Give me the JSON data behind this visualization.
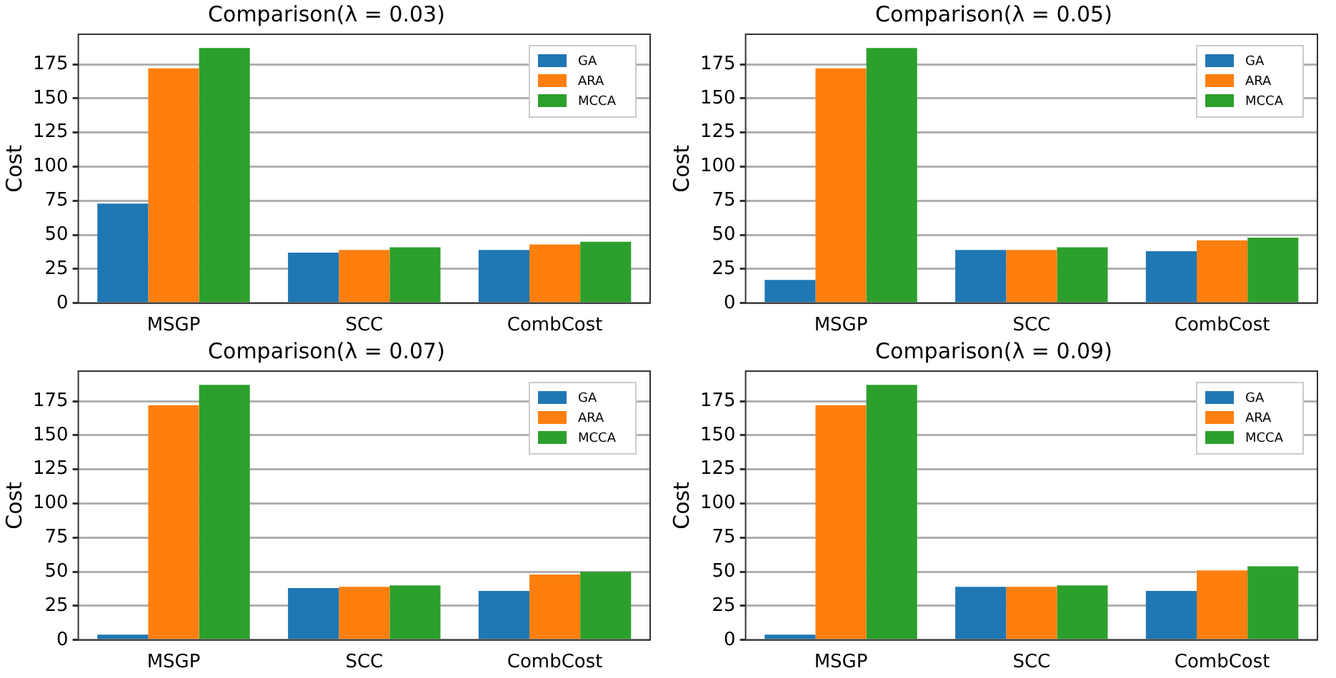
{
  "chart_data": [
    {
      "type": "bar",
      "title": "Comparison(λ = 0.03)",
      "ylabel": "Cost",
      "categories": [
        "MSGP",
        "SCC",
        "CombCost"
      ],
      "series": [
        {
          "name": "GA",
          "color": "#1f77b4",
          "values": [
            73,
            37,
            39
          ]
        },
        {
          "name": "ARA",
          "color": "#ff7f0e",
          "values": [
            172,
            39,
            43
          ]
        },
        {
          "name": "MCCA",
          "color": "#2ca02c",
          "values": [
            187,
            41,
            45
          ]
        }
      ],
      "ylim": [
        0,
        197
      ],
      "yticks": [
        0,
        25,
        50,
        75,
        100,
        125,
        150,
        175
      ],
      "grid": "y",
      "legend": "top right"
    },
    {
      "type": "bar",
      "title": "Comparison(λ = 0.05)",
      "ylabel": "Cost",
      "categories": [
        "MSGP",
        "SCC",
        "CombCost"
      ],
      "series": [
        {
          "name": "GA",
          "color": "#1f77b4",
          "values": [
            17,
            39,
            38
          ]
        },
        {
          "name": "ARA",
          "color": "#ff7f0e",
          "values": [
            172,
            39,
            46
          ]
        },
        {
          "name": "MCCA",
          "color": "#2ca02c",
          "values": [
            187,
            41,
            48
          ]
        }
      ],
      "ylim": [
        0,
        197
      ],
      "yticks": [
        0,
        25,
        50,
        75,
        100,
        125,
        150,
        175
      ],
      "grid": "y",
      "legend": "top right"
    },
    {
      "type": "bar",
      "title": "Comparison(λ = 0.07)",
      "ylabel": "Cost",
      "categories": [
        "MSGP",
        "SCC",
        "CombCost"
      ],
      "series": [
        {
          "name": "GA",
          "color": "#1f77b4",
          "values": [
            4,
            38,
            36
          ]
        },
        {
          "name": "ARA",
          "color": "#ff7f0e",
          "values": [
            172,
            39,
            48
          ]
        },
        {
          "name": "MCCA",
          "color": "#2ca02c",
          "values": [
            187,
            40,
            50
          ]
        }
      ],
      "ylim": [
        0,
        197
      ],
      "yticks": [
        0,
        25,
        50,
        75,
        100,
        125,
        150,
        175
      ],
      "grid": "y",
      "legend": "top right"
    },
    {
      "type": "bar",
      "title": "Comparison(λ = 0.09)",
      "ylabel": "Cost",
      "categories": [
        "MSGP",
        "SCC",
        "CombCost"
      ],
      "series": [
        {
          "name": "GA",
          "color": "#1f77b4",
          "values": [
            4,
            39,
            36
          ]
        },
        {
          "name": "ARA",
          "color": "#ff7f0e",
          "values": [
            172,
            39,
            51
          ]
        },
        {
          "name": "MCCA",
          "color": "#2ca02c",
          "values": [
            187,
            40,
            54
          ]
        }
      ],
      "ylim": [
        0,
        197
      ],
      "yticks": [
        0,
        25,
        50,
        75,
        100,
        125,
        150,
        175
      ],
      "grid": "y",
      "legend": "top right"
    }
  ]
}
